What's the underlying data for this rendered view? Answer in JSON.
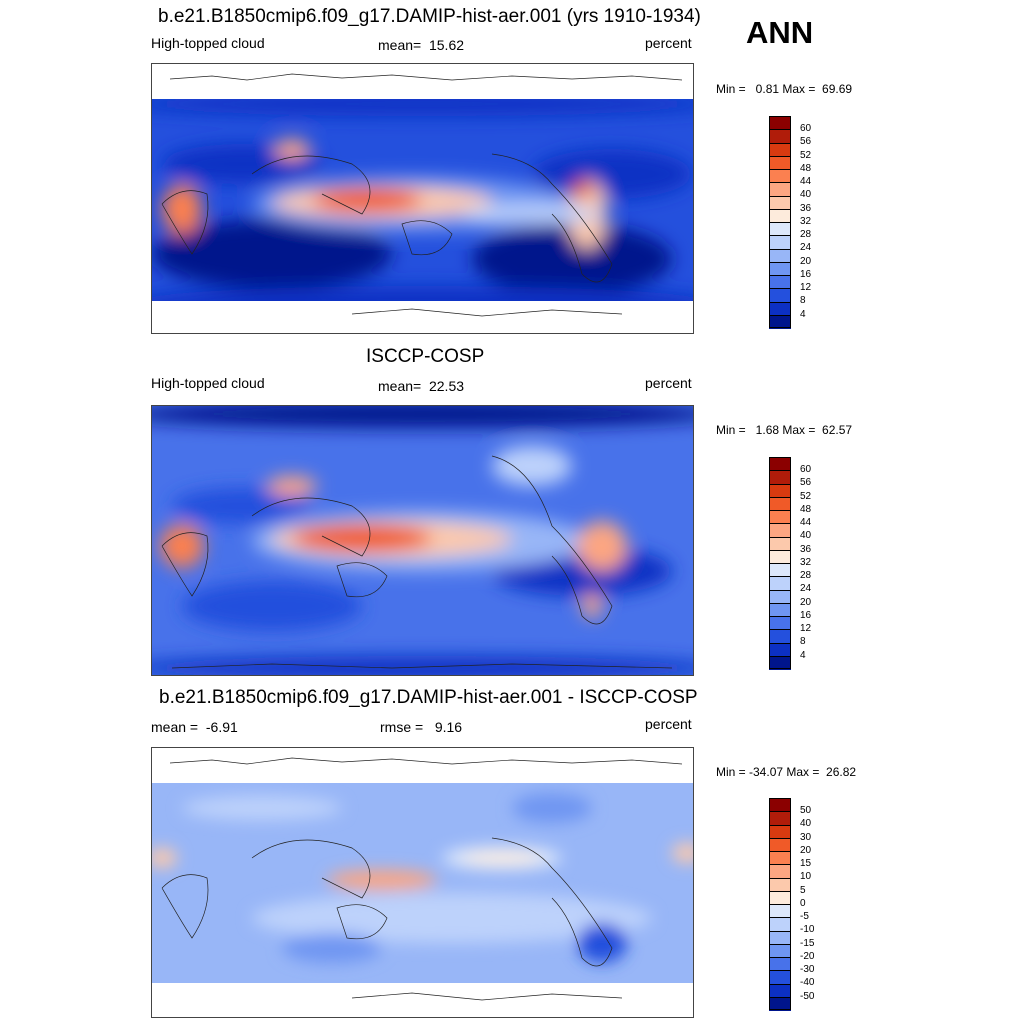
{
  "season": "ANN",
  "panels": [
    {
      "id": "model",
      "title": "b.e21.B1850cmip6.f09_g17.DAMIP-hist-aer.001 (yrs 1910-1934)",
      "left_label": "High-topped cloud",
      "center_label": "mean=  15.62",
      "units": "percent",
      "minmax": "Min =   0.81 Max =  69.69",
      "colorbar": {
        "labels": [
          "60",
          "56",
          "52",
          "48",
          "44",
          "40",
          "36",
          "32",
          "28",
          "24",
          "20",
          "16",
          "12",
          "8",
          "4"
        ],
        "colors": [
          "#8b0000",
          "#b01c0a",
          "#d83a10",
          "#f05a28",
          "#fb8050",
          "#fca682",
          "#fcc9ac",
          "#fdebdc",
          "#dde8fb",
          "#bdd2fb",
          "#98b6f7",
          "#6f96f2",
          "#4872ea",
          "#2450dd",
          "#0c30c4",
          "#00158c"
        ]
      }
    },
    {
      "id": "obs",
      "title": "ISCCP-COSP",
      "left_label": "High-topped cloud",
      "center_label": "mean=  22.53",
      "units": "percent",
      "minmax": "Min =   1.68 Max =  62.57",
      "colorbar": {
        "labels": [
          "60",
          "56",
          "52",
          "48",
          "44",
          "40",
          "36",
          "32",
          "28",
          "24",
          "20",
          "16",
          "12",
          "8",
          "4"
        ],
        "colors": [
          "#8b0000",
          "#b01c0a",
          "#d83a10",
          "#f05a28",
          "#fb8050",
          "#fca682",
          "#fcc9ac",
          "#fdebdc",
          "#dde8fb",
          "#bdd2fb",
          "#98b6f7",
          "#6f96f2",
          "#4872ea",
          "#2450dd",
          "#0c30c4",
          "#00158c"
        ]
      }
    },
    {
      "id": "diff",
      "title": "b.e21.B1850cmip6.f09_g17.DAMIP-hist-aer.001 - ISCCP-COSP",
      "left_label": "mean =  -6.91",
      "center_label": "rmse =   9.16",
      "units": "percent",
      "minmax": "Min = -34.07 Max =  26.82",
      "colorbar": {
        "labels": [
          "50",
          "40",
          "30",
          "20",
          "15",
          "10",
          "5",
          "0",
          "-5",
          "-10",
          "-15",
          "-20",
          "-30",
          "-40",
          "-50"
        ],
        "colors": [
          "#8b0000",
          "#b01c0a",
          "#d83a10",
          "#f05a28",
          "#fb8050",
          "#fca682",
          "#fcc9ac",
          "#fdebdc",
          "#dde8fb",
          "#bdd2fb",
          "#98b6f7",
          "#6f96f2",
          "#4872ea",
          "#2450dd",
          "#0c30c4",
          "#00158c"
        ]
      }
    }
  ]
}
